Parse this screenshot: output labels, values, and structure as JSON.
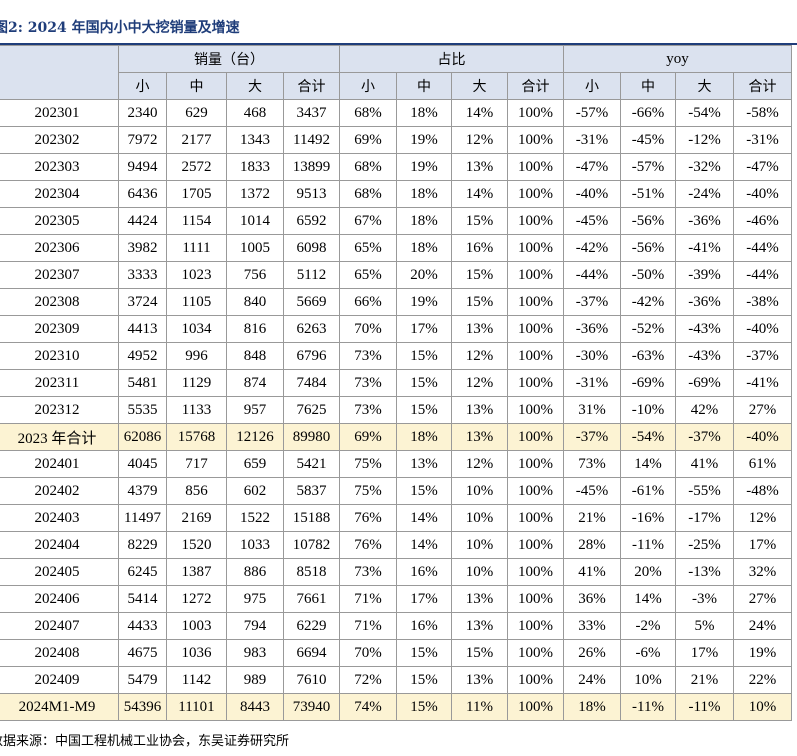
{
  "figure": {
    "title": "图2:  2024 年国内小中大挖销量及增速"
  },
  "header": {
    "groups": [
      "销量（台）",
      "占比",
      "yoy"
    ],
    "subcolumns": [
      "小",
      "中",
      "大",
      "合计"
    ]
  },
  "rows": [
    {
      "label": "202301",
      "sales": [
        "2340",
        "629",
        "468",
        "3437"
      ],
      "share": [
        "68%",
        "18%",
        "14%",
        "100%"
      ],
      "yoy": [
        "-57%",
        "-66%",
        "-54%",
        "-58%"
      ]
    },
    {
      "label": "202302",
      "sales": [
        "7972",
        "2177",
        "1343",
        "11492"
      ],
      "share": [
        "69%",
        "19%",
        "12%",
        "100%"
      ],
      "yoy": [
        "-31%",
        "-45%",
        "-12%",
        "-31%"
      ]
    },
    {
      "label": "202303",
      "sales": [
        "9494",
        "2572",
        "1833",
        "13899"
      ],
      "share": [
        "68%",
        "19%",
        "13%",
        "100%"
      ],
      "yoy": [
        "-47%",
        "-57%",
        "-32%",
        "-47%"
      ]
    },
    {
      "label": "202304",
      "sales": [
        "6436",
        "1705",
        "1372",
        "9513"
      ],
      "share": [
        "68%",
        "18%",
        "14%",
        "100%"
      ],
      "yoy": [
        "-40%",
        "-51%",
        "-24%",
        "-40%"
      ]
    },
    {
      "label": "202305",
      "sales": [
        "4424",
        "1154",
        "1014",
        "6592"
      ],
      "share": [
        "67%",
        "18%",
        "15%",
        "100%"
      ],
      "yoy": [
        "-45%",
        "-56%",
        "-36%",
        "-46%"
      ]
    },
    {
      "label": "202306",
      "sales": [
        "3982",
        "1111",
        "1005",
        "6098"
      ],
      "share": [
        "65%",
        "18%",
        "16%",
        "100%"
      ],
      "yoy": [
        "-42%",
        "-56%",
        "-41%",
        "-44%"
      ]
    },
    {
      "label": "202307",
      "sales": [
        "3333",
        "1023",
        "756",
        "5112"
      ],
      "share": [
        "65%",
        "20%",
        "15%",
        "100%"
      ],
      "yoy": [
        "-44%",
        "-50%",
        "-39%",
        "-44%"
      ]
    },
    {
      "label": "202308",
      "sales": [
        "3724",
        "1105",
        "840",
        "5669"
      ],
      "share": [
        "66%",
        "19%",
        "15%",
        "100%"
      ],
      "yoy": [
        "-37%",
        "-42%",
        "-36%",
        "-38%"
      ]
    },
    {
      "label": "202309",
      "sales": [
        "4413",
        "1034",
        "816",
        "6263"
      ],
      "share": [
        "70%",
        "17%",
        "13%",
        "100%"
      ],
      "yoy": [
        "-36%",
        "-52%",
        "-43%",
        "-40%"
      ]
    },
    {
      "label": "202310",
      "sales": [
        "4952",
        "996",
        "848",
        "6796"
      ],
      "share": [
        "73%",
        "15%",
        "12%",
        "100%"
      ],
      "yoy": [
        "-30%",
        "-63%",
        "-43%",
        "-37%"
      ]
    },
    {
      "label": "202311",
      "sales": [
        "5481",
        "1129",
        "874",
        "7484"
      ],
      "share": [
        "73%",
        "15%",
        "12%",
        "100%"
      ],
      "yoy": [
        "-31%",
        "-69%",
        "-69%",
        "-41%"
      ]
    },
    {
      "label": "202312",
      "sales": [
        "5535",
        "1133",
        "957",
        "7625"
      ],
      "share": [
        "73%",
        "15%",
        "13%",
        "100%"
      ],
      "yoy": [
        "31%",
        "-10%",
        "42%",
        "27%"
      ]
    },
    {
      "label": "2023 年合计",
      "summary": true,
      "sales": [
        "62086",
        "15768",
        "12126",
        "89980"
      ],
      "share": [
        "69%",
        "18%",
        "13%",
        "100%"
      ],
      "yoy": [
        "-37%",
        "-54%",
        "-37%",
        "-40%"
      ]
    },
    {
      "label": "202401",
      "sales": [
        "4045",
        "717",
        "659",
        "5421"
      ],
      "share": [
        "75%",
        "13%",
        "12%",
        "100%"
      ],
      "yoy": [
        "73%",
        "14%",
        "41%",
        "61%"
      ]
    },
    {
      "label": "202402",
      "sales": [
        "4379",
        "856",
        "602",
        "5837"
      ],
      "share": [
        "75%",
        "15%",
        "10%",
        "100%"
      ],
      "yoy": [
        "-45%",
        "-61%",
        "-55%",
        "-48%"
      ]
    },
    {
      "label": "202403",
      "sales": [
        "11497",
        "2169",
        "1522",
        "15188"
      ],
      "share": [
        "76%",
        "14%",
        "10%",
        "100%"
      ],
      "yoy": [
        "21%",
        "-16%",
        "-17%",
        "12%"
      ]
    },
    {
      "label": "202404",
      "sales": [
        "8229",
        "1520",
        "1033",
        "10782"
      ],
      "share": [
        "76%",
        "14%",
        "10%",
        "100%"
      ],
      "yoy": [
        "28%",
        "-11%",
        "-25%",
        "17%"
      ]
    },
    {
      "label": "202405",
      "sales": [
        "6245",
        "1387",
        "886",
        "8518"
      ],
      "share": [
        "73%",
        "16%",
        "10%",
        "100%"
      ],
      "yoy": [
        "41%",
        "20%",
        "-13%",
        "32%"
      ]
    },
    {
      "label": "202406",
      "sales": [
        "5414",
        "1272",
        "975",
        "7661"
      ],
      "share": [
        "71%",
        "17%",
        "13%",
        "100%"
      ],
      "yoy": [
        "36%",
        "14%",
        "-3%",
        "27%"
      ]
    },
    {
      "label": "202407",
      "sales": [
        "4433",
        "1003",
        "794",
        "6229"
      ],
      "share": [
        "71%",
        "16%",
        "13%",
        "100%"
      ],
      "yoy": [
        "33%",
        "-2%",
        "5%",
        "24%"
      ]
    },
    {
      "label": "202408",
      "sales": [
        "4675",
        "1036",
        "983",
        "6694"
      ],
      "share": [
        "70%",
        "15%",
        "15%",
        "100%"
      ],
      "yoy": [
        "26%",
        "-6%",
        "17%",
        "19%"
      ]
    },
    {
      "label": "202409",
      "boldYoy": true,
      "sales": [
        "5479",
        "1142",
        "989",
        "7610"
      ],
      "share": [
        "72%",
        "15%",
        "13%",
        "100%"
      ],
      "yoy": [
        "24%",
        "10%",
        "21%",
        "22%"
      ]
    },
    {
      "label": "2024M1-M9",
      "summary": true,
      "sales": [
        "54396",
        "11101",
        "8443",
        "73940"
      ],
      "share": [
        "74%",
        "15%",
        "11%",
        "100%"
      ],
      "yoy": [
        "18%",
        "-11%",
        "-11%",
        "10%"
      ]
    }
  ],
  "source": "数据来源：中国工程机械工业协会，东吴证券研究所",
  "colors": {
    "title": "#1f3d7a",
    "header_bg": "#dbe2ef",
    "summary_bg": "#fcf3d3",
    "border": "#999999"
  }
}
